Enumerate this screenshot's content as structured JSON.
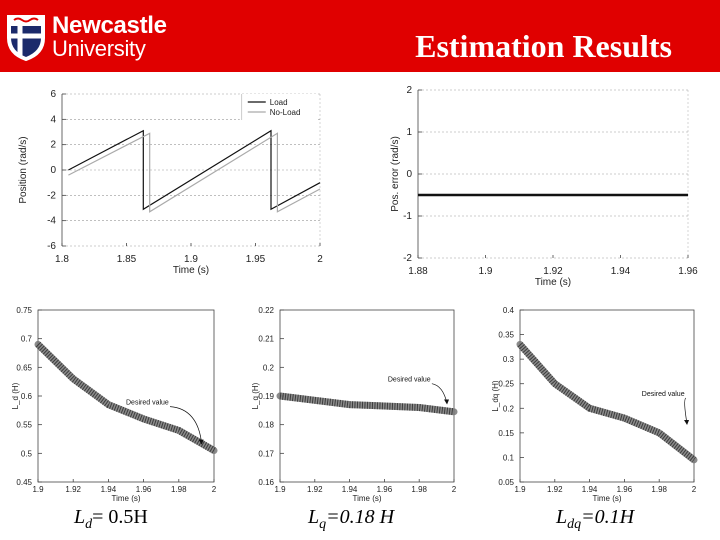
{
  "header": {
    "logo_line1": "Newcastle",
    "logo_line2": "University",
    "title": "Estimation Results",
    "bg_color": "#e00000"
  },
  "captions": [
    {
      "prefix": "L",
      "sub": "d",
      "eq": "= 0.5H"
    },
    {
      "prefix": "L",
      "sub": "q",
      "eq": "=0.18 H"
    },
    {
      "prefix": "L",
      "sub": "dq",
      "eq": "=0.1H"
    }
  ],
  "chart_data": [
    {
      "id": "position",
      "type": "line",
      "xlabel": "Time (s)",
      "ylabel": "Position (rad/s)",
      "xlim": [
        1.8,
        2.0
      ],
      "ylim": [
        -6,
        6
      ],
      "xticks": [
        "1.8",
        "1.85",
        "1.9",
        "1.95",
        "2"
      ],
      "yticks": [
        "-6",
        "-4",
        "-2",
        "0",
        "2",
        "4",
        "6"
      ],
      "legend": [
        "Load",
        "No-Load"
      ],
      "series": [
        {
          "name": "Load",
          "x": [
            1.805,
            1.863,
            1.863,
            1.962,
            1.962,
            2.0
          ],
          "y": [
            0.0,
            3.1,
            -3.1,
            3.1,
            -3.1,
            -1.0
          ]
        },
        {
          "name": "No-Load",
          "x": [
            1.805,
            1.868,
            1.868,
            1.967,
            1.967,
            2.0
          ],
          "y": [
            -0.4,
            2.9,
            -3.3,
            2.9,
            -3.3,
            -1.5
          ]
        }
      ]
    },
    {
      "id": "pos-error",
      "type": "line",
      "xlabel": "Time (s)",
      "ylabel": "Pos. error (rad/s)",
      "xlim": [
        1.88,
        1.96
      ],
      "ylim": [
        -2,
        2
      ],
      "xticks": [
        "1.88",
        "1.9",
        "1.92",
        "1.94",
        "1.96"
      ],
      "yticks": [
        "-2",
        "-1",
        "0",
        "1",
        "2"
      ],
      "series": [
        {
          "name": "error",
          "x": [
            1.88,
            1.96
          ],
          "y": [
            -0.5,
            -0.5
          ]
        }
      ]
    },
    {
      "id": "ld",
      "type": "line",
      "xlabel": "Time (s)",
      "ylabel": "L_d (H)",
      "xlim": [
        1.9,
        2.0
      ],
      "ylim": [
        0.45,
        0.75
      ],
      "xticks": [
        "1.9",
        "1.92",
        "1.94",
        "1.96",
        "1.98",
        "2"
      ],
      "yticks": [
        "0.45",
        "0.5",
        "0.55",
        "0.6",
        "0.65",
        "0.7",
        "0.75"
      ],
      "annotation": "Desired value",
      "series": [
        {
          "name": "L_d",
          "x": [
            1.9,
            1.92,
            1.94,
            1.96,
            1.98,
            2.0
          ],
          "y": [
            0.69,
            0.63,
            0.585,
            0.56,
            0.54,
            0.505
          ]
        }
      ]
    },
    {
      "id": "lq",
      "type": "line",
      "xlabel": "Time (s)",
      "ylabel": "L_q (H)",
      "xlim": [
        1.9,
        2.0
      ],
      "ylim": [
        0.16,
        0.22
      ],
      "xticks": [
        "1.9",
        "1.92",
        "1.94",
        "1.96",
        "1.98",
        "2"
      ],
      "yticks": [
        "0.16",
        "0.17",
        "0.18",
        "0.19",
        "0.2",
        "0.21",
        "0.22"
      ],
      "annotation": "Desired value",
      "series": [
        {
          "name": "L_q",
          "x": [
            1.9,
            1.92,
            1.94,
            1.96,
            1.98,
            2.0
          ],
          "y": [
            0.19,
            0.1885,
            0.187,
            0.1865,
            0.186,
            0.1845
          ]
        }
      ]
    },
    {
      "id": "ldq",
      "type": "line",
      "xlabel": "Time (s)",
      "ylabel": "L_dq (H)",
      "xlim": [
        1.9,
        2.0
      ],
      "ylim": [
        0.05,
        0.4
      ],
      "xticks": [
        "1.9",
        "1.92",
        "1.94",
        "1.96",
        "1.98",
        "2"
      ],
      "yticks": [
        "0.05",
        "0.1",
        "0.15",
        "0.2",
        "0.25",
        "0.3",
        "0.35",
        "0.4"
      ],
      "annotation": "Desired value",
      "series": [
        {
          "name": "L_dq",
          "x": [
            1.9,
            1.92,
            1.94,
            1.96,
            1.98,
            2.0
          ],
          "y": [
            0.33,
            0.25,
            0.2,
            0.18,
            0.15,
            0.095
          ]
        }
      ]
    }
  ]
}
